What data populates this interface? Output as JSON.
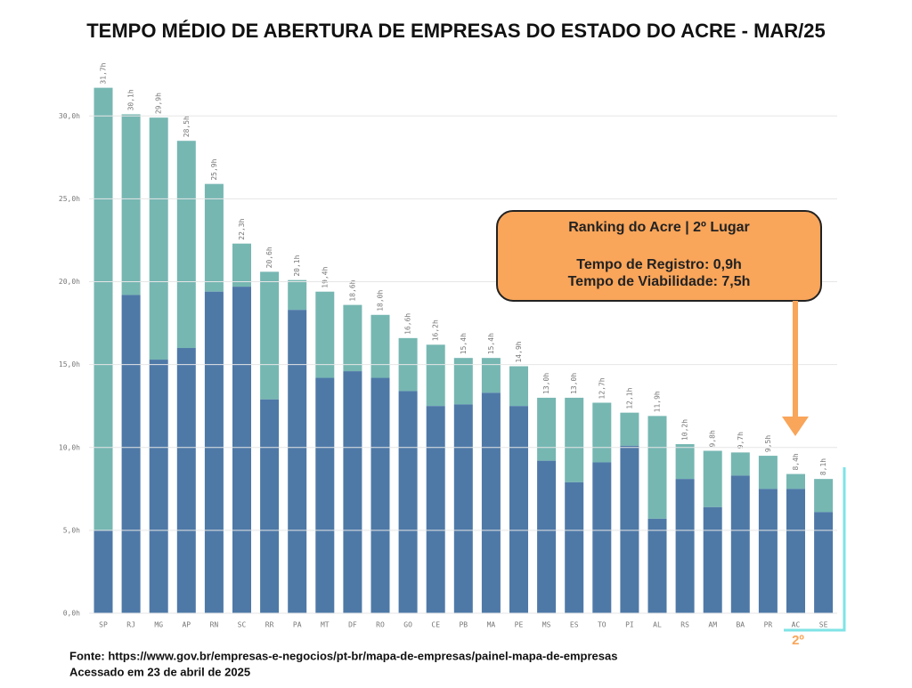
{
  "chart_data": {
    "type": "stacked_bar",
    "title": "TEMPO MÉDIO DE ABERTURA DE EMPRESAS DO ESTADO DO ACRE - MAR/25",
    "categories": [
      "SP",
      "RJ",
      "MG",
      "AP",
      "RN",
      "SC",
      "RR",
      "PA",
      "MT",
      "DF",
      "RO",
      "GO",
      "CE",
      "PB",
      "MA",
      "PE",
      "MS",
      "ES",
      "TO",
      "PI",
      "AL",
      "RS",
      "AM",
      "BA",
      "PR",
      "AC",
      "SE"
    ],
    "series": [
      {
        "color": "#4e79a7",
        "values": [
          5.0,
          19.2,
          15.3,
          16.0,
          19.4,
          19.7,
          12.9,
          18.3,
          14.2,
          14.6,
          14.2,
          13.4,
          12.5,
          12.6,
          13.3,
          12.5,
          9.2,
          7.9,
          9.1,
          10.1,
          5.7,
          8.1,
          6.4,
          8.3,
          7.5,
          7.5,
          6.1
        ]
      },
      {
        "color": "#76b7b2",
        "values": [
          26.7,
          10.9,
          14.6,
          12.5,
          6.5,
          2.6,
          7.7,
          1.8,
          5.2,
          4.0,
          3.8,
          3.2,
          3.7,
          2.8,
          2.1,
          2.4,
          3.8,
          5.1,
          3.6,
          2.0,
          6.2,
          2.1,
          3.4,
          1.4,
          2.0,
          0.9,
          2.0
        ]
      }
    ],
    "totals": [
      31.7,
      30.1,
      29.9,
      28.5,
      25.9,
      22.3,
      20.6,
      20.1,
      19.4,
      18.6,
      18.0,
      16.6,
      16.2,
      15.4,
      15.4,
      14.9,
      13.0,
      13.0,
      12.7,
      12.1,
      11.9,
      10.2,
      9.8,
      9.7,
      9.5,
      8.4,
      8.1
    ],
    "total_labels": [
      "31,7h",
      "30,1h",
      "29,9h",
      "28,5h",
      "25,9h",
      "22,3h",
      "20,6h",
      "20,1h",
      "19,4h",
      "18,6h",
      "18,0h",
      "16,6h",
      "16,2h",
      "15,4h",
      "15,4h",
      "14,9h",
      "13,0h",
      "13,0h",
      "12,7h",
      "12,1h",
      "11,9h",
      "10,2h",
      "9,8h",
      "9,7h",
      "9,5h",
      "8,4h",
      "8,1h"
    ],
    "ylim": [
      0,
      32.7
    ],
    "yticks": [
      {
        "value": 0,
        "label": "0,0h"
      },
      {
        "value": 5,
        "label": "5,0h"
      },
      {
        "value": 10,
        "label": "10,0h"
      },
      {
        "value": 15,
        "label": "15,0h"
      },
      {
        "value": 20,
        "label": "20,0h"
      },
      {
        "value": 25,
        "label": "25,0h"
      },
      {
        "value": 30,
        "label": "30,0h"
      }
    ],
    "grid": true,
    "annotation": {
      "heading": "Ranking do Acre | 2º Lugar",
      "line1": "Tempo de Registro: 0,9h",
      "line2": "Tempo de Viabilidade: 7,5h"
    },
    "highlight_label": "2º"
  },
  "footer": {
    "source": "Fonte: https://www.gov.br/empresas-e-negocios/pt-br/mapa-de-empresas/painel-mapa-de-empresas",
    "accessed": "Acessado em 23 de abril de 2025"
  }
}
